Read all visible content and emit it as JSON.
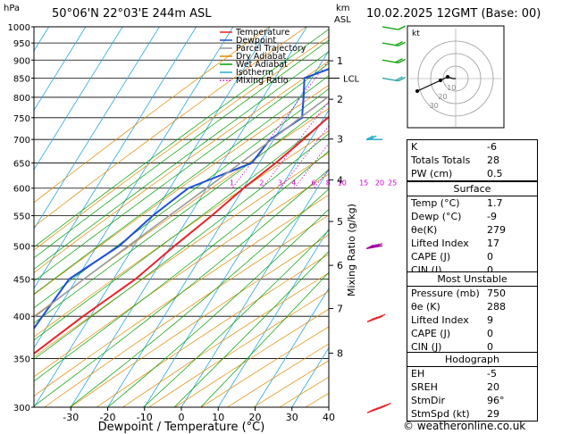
{
  "header": {
    "hpa_unit": "hPa",
    "location": "50°06'N  22°03'E  244m  ASL",
    "km_unit": "km",
    "asl_unit": "ASL",
    "datetime": "10.02.2025  12GMT  (Base: 00)"
  },
  "chart_data": {
    "type": "line",
    "xlabel": "Dewpoint / Temperature (°C)",
    "ylabel": "",
    "right_axis_label": "Mixing Ratio (g/kg)",
    "pressure_levels": [
      300,
      350,
      400,
      450,
      500,
      550,
      600,
      650,
      700,
      750,
      800,
      850,
      900,
      950,
      1000
    ],
    "x_ticks": [
      -30,
      -20,
      -10,
      0,
      10,
      20,
      30,
      40
    ],
    "xlim": [
      -40,
      40
    ],
    "ylim": [
      1000,
      300
    ],
    "km_ticks": [
      {
        "label": "8",
        "p": 356
      },
      {
        "label": "7",
        "p": 410
      },
      {
        "label": "6",
        "p": 470
      },
      {
        "label": "5",
        "p": 540
      },
      {
        "label": "4",
        "p": 616
      },
      {
        "label": "3",
        "p": 701
      },
      {
        "label": "2",
        "p": 795
      },
      {
        "label": "1",
        "p": 898
      }
    ],
    "lcl": {
      "label": "LCL",
      "p": 850
    },
    "mixing_ratios": [
      "1",
      "2",
      "3",
      "4",
      "6",
      "8",
      "10",
      "15",
      "20",
      "25"
    ],
    "legend": [
      {
        "name": "Temperature",
        "color": "#e8242b",
        "style": "solid"
      },
      {
        "name": "Dewpoint",
        "color": "#1f4fd8",
        "style": "solid"
      },
      {
        "name": "Parcel Trajectory",
        "color": "#999999",
        "style": "solid"
      },
      {
        "name": "Dry Adiabat",
        "color": "#e08a00",
        "style": "solid"
      },
      {
        "name": "Wet Adiabat",
        "color": "#00a000",
        "style": "solid"
      },
      {
        "name": "Isotherm",
        "color": "#2aa7e0",
        "style": "solid"
      },
      {
        "name": "Mixing Ratio",
        "color": "#d000d0",
        "style": "dotted"
      }
    ],
    "series": [
      {
        "name": "Temperature",
        "color": "#e8242b",
        "points": [
          [
            1000,
            1.7
          ],
          [
            950,
            -2.5
          ],
          [
            900,
            -5.5
          ],
          [
            850,
            -3.5
          ],
          [
            800,
            -5.5
          ],
          [
            750,
            -9
          ],
          [
            700,
            -12
          ],
          [
            650,
            -15.5
          ],
          [
            600,
            -20
          ],
          [
            550,
            -24
          ],
          [
            500,
            -29
          ],
          [
            450,
            -34
          ],
          [
            400,
            -42
          ],
          [
            350,
            -50
          ],
          [
            300,
            -56
          ]
        ]
      },
      {
        "name": "Dewpoint",
        "color": "#1f4fd8",
        "points": [
          [
            1000,
            -9
          ],
          [
            950,
            -10
          ],
          [
            900,
            -12
          ],
          [
            850,
            -22
          ],
          [
            800,
            -19
          ],
          [
            750,
            -16
          ],
          [
            700,
            -21
          ],
          [
            650,
            -22
          ],
          [
            600,
            -35
          ],
          [
            550,
            -40
          ],
          [
            500,
            -44
          ],
          [
            450,
            -52
          ],
          [
            400,
            -53
          ],
          [
            350,
            -54
          ],
          [
            300,
            -58
          ]
        ]
      },
      {
        "name": "Parcel Trajectory",
        "color": "#999999",
        "points": [
          [
            1000,
            1.7
          ],
          [
            950,
            -2.5
          ],
          [
            900,
            -6.5
          ],
          [
            850,
            -9
          ],
          [
            800,
            -12.5
          ],
          [
            750,
            -16.5
          ],
          [
            700,
            -20.5
          ],
          [
            650,
            -25
          ],
          [
            600,
            -30
          ],
          [
            550,
            -35.5
          ],
          [
            500,
            -41.5
          ],
          [
            450,
            -48
          ],
          [
            400,
            -55
          ],
          [
            350,
            -62
          ],
          [
            300,
            -69
          ]
        ]
      }
    ]
  },
  "wind_barbs": [
    {
      "p": 300,
      "dir": 250,
      "speed": 70,
      "color": "#e8242b"
    },
    {
      "p": 400,
      "dir": 250,
      "speed": 50,
      "color": "#e8242b"
    },
    {
      "p": 500,
      "dir": 260,
      "speed": 40,
      "color": "#a000a0"
    },
    {
      "p": 700,
      "dir": 270,
      "speed": 20,
      "color": "#1aa6c8"
    },
    {
      "p": 850,
      "dir": 100,
      "speed": 15,
      "color": "#20a0a0"
    },
    {
      "p": 900,
      "dir": 100,
      "speed": 15,
      "color": "#00a000"
    },
    {
      "p": 950,
      "dir": 100,
      "speed": 15,
      "color": "#00a000"
    },
    {
      "p": 1000,
      "dir": 100,
      "speed": 10,
      "color": "#00a000"
    }
  ],
  "hodograph": {
    "unit_label": "kt",
    "ring_labels": [
      "10",
      "20",
      "30"
    ]
  },
  "indices": {
    "rows": [
      {
        "label": "K",
        "value": "-6"
      },
      {
        "label": "Totals Totals",
        "value": "28"
      },
      {
        "label": "PW (cm)",
        "value": "0.5"
      }
    ]
  },
  "surface": {
    "title": "Surface",
    "rows": [
      {
        "label": "Temp (°C)",
        "value": "1.7"
      },
      {
        "label": "Dewp (°C)",
        "value": "-9"
      },
      {
        "label": "θe(K)",
        "value": "279"
      },
      {
        "label": "Lifted Index",
        "value": "17"
      },
      {
        "label": "CAPE (J)",
        "value": "0"
      },
      {
        "label": "CIN (J)",
        "value": "0"
      }
    ]
  },
  "most_unstable": {
    "title": "Most Unstable",
    "rows": [
      {
        "label": "Pressure (mb)",
        "value": "750"
      },
      {
        "label": "θe (K)",
        "value": "288"
      },
      {
        "label": "Lifted Index",
        "value": "9"
      },
      {
        "label": "CAPE (J)",
        "value": "0"
      },
      {
        "label": "CIN (J)",
        "value": "0"
      }
    ]
  },
  "hodograph_table": {
    "title": "Hodograph",
    "rows": [
      {
        "label": "EH",
        "value": "-5"
      },
      {
        "label": "SREH",
        "value": "20"
      },
      {
        "label": "StmDir",
        "value": "96°"
      },
      {
        "label": "StmSpd (kt)",
        "value": "29"
      }
    ]
  },
  "credit": "© weatheronline.co.uk"
}
